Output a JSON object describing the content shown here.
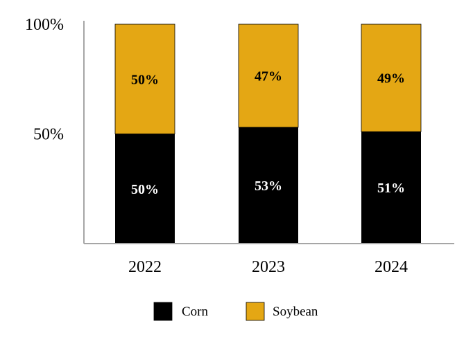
{
  "chart_data": {
    "type": "bar",
    "stacked": true,
    "percent_stacked": true,
    "categories": [
      "2022",
      "2023",
      "2024"
    ],
    "series": [
      {
        "name": "Corn",
        "values": [
          50,
          53,
          51
        ],
        "labels": [
          "50%",
          "53%",
          "51%"
        ],
        "color": "#000000",
        "label_color": "#ffffff"
      },
      {
        "name": "Soybean",
        "values": [
          50,
          47,
          49
        ],
        "labels": [
          "50%",
          "47%",
          "49%"
        ],
        "color": "#E4A714",
        "label_color": "#000000"
      }
    ],
    "y_ticks": [
      {
        "value": 50,
        "label": "50%"
      },
      {
        "value": 100,
        "label": "100%"
      }
    ],
    "ylim": [
      0,
      100
    ],
    "grid": false,
    "legend_position": "bottom"
  }
}
